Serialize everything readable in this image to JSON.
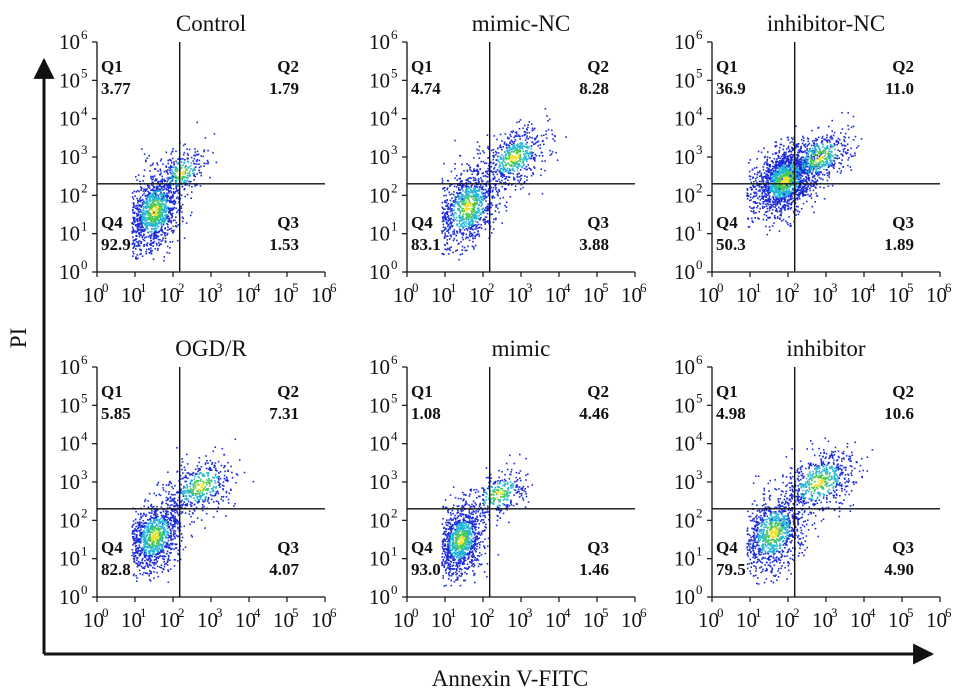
{
  "chart_data": {
    "type": "scatter",
    "style": "flow cytometry density dot plot, log scale axes",
    "xlabel": "Annexin V-FITC",
    "ylabel": "PI",
    "xscale": "log10",
    "yscale": "log10",
    "xlim": [
      1,
      1000000
    ],
    "ylim": [
      1,
      1000000
    ],
    "tick_base": "10",
    "tick_exponents": [
      "0",
      "1",
      "2",
      "3",
      "4",
      "5",
      "6"
    ],
    "gate": {
      "x": 150,
      "y": 200
    },
    "quadrant_names": [
      "Q1",
      "Q2",
      "Q3",
      "Q4"
    ],
    "colors": {
      "axis": "#111111",
      "low": "#1b2bd9",
      "mid": "#1fb5d6",
      "high": "#46c85a",
      "peak": "#f2e12a"
    },
    "panels": [
      {
        "title": "Control",
        "quadrants": {
          "Q1": "3.77",
          "Q2": "1.79",
          "Q3": "1.53",
          "Q4": "92.9"
        },
        "clusters": [
          {
            "cx": 1.5,
            "cy": 1.6,
            "sx": 0.35,
            "sy": 0.5,
            "n": 1100
          },
          {
            "cx": 2.2,
            "cy": 2.6,
            "sx": 0.35,
            "sy": 0.3,
            "n": 280
          }
        ]
      },
      {
        "title": "mimic-NC",
        "quadrants": {
          "Q1": "4.74",
          "Q2": "8.28",
          "Q3": "3.88",
          "Q4": "83.1"
        },
        "clusters": [
          {
            "cx": 1.6,
            "cy": 1.7,
            "sx": 0.4,
            "sy": 0.5,
            "n": 950
          },
          {
            "cx": 2.8,
            "cy": 3.0,
            "sx": 0.45,
            "sy": 0.35,
            "n": 550
          }
        ]
      },
      {
        "title": "inhibitor-NC",
        "quadrants": {
          "Q1": "36.9",
          "Q2": "11.0",
          "Q3": "1.89",
          "Q4": "50.3"
        },
        "clusters": [
          {
            "cx": 1.9,
            "cy": 2.4,
            "sx": 0.4,
            "sy": 0.4,
            "n": 1700
          },
          {
            "cx": 2.8,
            "cy": 3.0,
            "sx": 0.45,
            "sy": 0.35,
            "n": 500
          }
        ]
      },
      {
        "title": "OGD/R",
        "quadrants": {
          "Q1": "5.85",
          "Q2": "7.31",
          "Q3": "4.07",
          "Q4": "82.8"
        },
        "clusters": [
          {
            "cx": 1.5,
            "cy": 1.6,
            "sx": 0.35,
            "sy": 0.45,
            "n": 1000
          },
          {
            "cx": 2.7,
            "cy": 2.9,
            "sx": 0.45,
            "sy": 0.35,
            "n": 450
          }
        ]
      },
      {
        "title": "mimic",
        "quadrants": {
          "Q1": "1.08",
          "Q2": "4.46",
          "Q3": "1.46",
          "Q4": "93.0"
        },
        "clusters": [
          {
            "cx": 1.4,
            "cy": 1.5,
            "sx": 0.3,
            "sy": 0.45,
            "n": 1000
          },
          {
            "cx": 2.4,
            "cy": 2.7,
            "sx": 0.4,
            "sy": 0.3,
            "n": 300
          }
        ]
      },
      {
        "title": "inhibitor",
        "quadrants": {
          "Q1": "4.98",
          "Q2": "10.6",
          "Q3": "4.90",
          "Q4": "79.5"
        },
        "clusters": [
          {
            "cx": 1.6,
            "cy": 1.7,
            "sx": 0.4,
            "sy": 0.5,
            "n": 950
          },
          {
            "cx": 2.8,
            "cy": 3.0,
            "sx": 0.5,
            "sy": 0.4,
            "n": 600
          }
        ]
      }
    ]
  }
}
